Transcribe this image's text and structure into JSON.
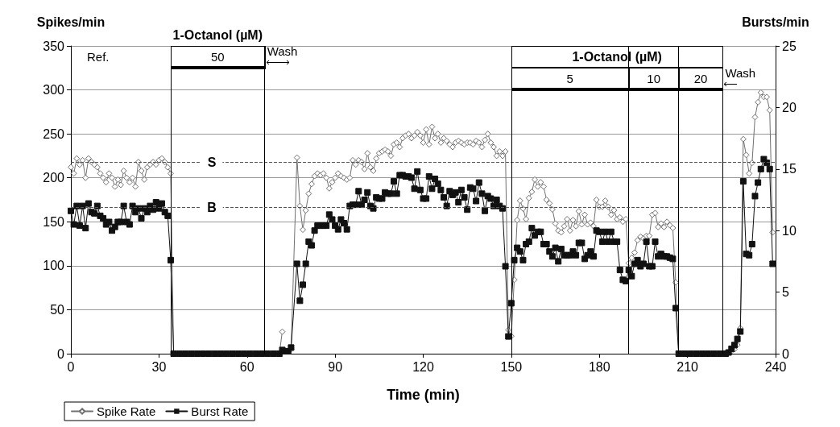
{
  "chart_data": {
    "type": "line",
    "xlabel": "Time (min)",
    "ylabel": "Spikes/min",
    "y2label": "Bursts/min",
    "xlim": [
      0,
      240
    ],
    "xticks": [
      0,
      30,
      60,
      90,
      120,
      150,
      180,
      210,
      240
    ],
    "ylim": [
      0,
      350
    ],
    "yticks": [
      0,
      50,
      100,
      150,
      200,
      250,
      300,
      350
    ],
    "y2lim": [
      0,
      25
    ],
    "y2ticks": [
      0,
      5,
      10,
      15,
      20,
      25
    ],
    "grid": "y",
    "legend": "bottom left",
    "x": [
      0,
      1,
      2,
      3,
      4,
      5,
      6,
      7,
      8,
      9,
      10,
      11,
      12,
      13,
      14,
      15,
      16,
      17,
      18,
      19,
      20,
      21,
      22,
      23,
      24,
      25,
      26,
      27,
      28,
      29,
      30,
      31,
      32,
      33,
      34,
      35,
      37,
      39,
      41,
      43,
      45,
      47,
      49,
      51,
      53,
      55,
      57,
      59,
      61,
      63,
      65,
      67,
      69,
      71,
      72,
      73,
      74,
      75,
      77,
      78,
      79,
      80,
      81,
      82,
      83,
      84,
      85,
      86,
      87,
      88,
      89,
      90,
      91,
      92,
      93,
      94,
      95,
      96,
      97,
      98,
      99,
      100,
      101,
      102,
      103,
      104,
      105,
      106,
      107,
      108,
      109,
      110,
      111,
      112,
      113,
      114,
      115,
      116,
      117,
      118,
      119,
      120,
      121,
      122,
      123,
      124,
      125,
      126,
      127,
      128,
      129,
      130,
      131,
      132,
      133,
      134,
      135,
      136,
      137,
      138,
      139,
      140,
      141,
      142,
      143,
      144,
      145,
      146,
      147,
      148,
      149,
      150,
      151,
      152,
      153,
      154,
      155,
      156,
      157,
      158,
      159,
      160,
      161,
      162,
      163,
      164,
      165,
      166,
      167,
      168,
      169,
      170,
      171,
      172,
      173,
      174,
      175,
      176,
      177,
      178,
      179,
      180,
      181,
      182,
      183,
      184,
      185,
      186,
      187,
      188,
      189,
      190,
      191,
      192,
      193,
      194,
      195,
      196,
      197,
      198,
      199,
      200,
      201,
      202,
      203,
      204,
      205,
      206,
      207,
      209,
      211,
      213,
      215,
      217,
      219,
      221,
      223,
      224,
      225,
      226,
      227,
      228,
      229,
      230,
      231,
      232,
      233,
      234,
      235,
      236,
      237,
      238,
      239
    ],
    "series": [
      {
        "name": "Spike Rate",
        "color": "#707070",
        "marker": "diamond",
        "values": [
          212,
          205,
          222,
          215,
          220,
          200,
          222,
          218,
          215,
          212,
          205,
          200,
          195,
          205,
          200,
          190,
          198,
          192,
          208,
          200,
          195,
          200,
          190,
          218,
          208,
          198,
          212,
          215,
          218,
          215,
          220,
          222,
          218,
          212,
          205,
          0,
          0,
          0,
          0,
          0,
          0,
          0,
          0,
          0,
          0,
          0,
          0,
          0,
          0,
          0,
          0,
          0,
          0,
          0,
          25,
          null,
          3,
          5,
          223,
          168,
          141,
          163,
          182,
          193,
          202,
          205,
          203,
          205,
          200,
          188,
          195,
          200,
          205,
          202,
          200,
          198,
          200,
          220,
          215,
          220,
          218,
          210,
          228,
          212,
          208,
          222,
          228,
          230,
          232,
          230,
          225,
          238,
          240,
          235,
          245,
          248,
          250,
          245,
          248,
          252,
          248,
          240,
          255,
          238,
          258,
          245,
          250,
          240,
          245,
          242,
          238,
          235,
          240,
          242,
          240,
          238,
          240,
          240,
          238,
          242,
          240,
          235,
          243,
          250,
          240,
          235,
          225,
          230,
          225,
          230,
          27,
          20,
          84,
          152,
          174,
          165,
          153,
          177,
          184,
          198,
          190,
          195,
          190,
          175,
          171,
          164,
          148,
          140,
          138,
          145,
          153,
          140,
          152,
          145,
          162,
          147,
          158,
          147,
          149,
          145,
          175,
          167,
          167,
          174,
          167,
          158,
          163,
          153,
          155,
          150,
          153,
          103,
          109,
          115,
          129,
          133,
          131,
          134,
          134,
          158,
          160,
          144,
          148,
          144,
          150,
          146,
          143,
          81,
          0,
          0,
          0,
          0,
          0,
          0,
          0,
          0,
          0,
          1,
          3,
          5,
          10,
          29,
          244,
          226,
          205,
          217,
          269,
          286,
          297,
          292,
          292,
          277,
          138
        ]
      },
      {
        "name": "Burst Rate",
        "color": "#111111",
        "marker": "square",
        "axis": "y2",
        "values": [
          11.6,
          10.5,
          12.0,
          10.4,
          12.0,
          10.2,
          12.2,
          11.5,
          11.4,
          12.0,
          11.2,
          11.0,
          10.5,
          10.7,
          10.0,
          10.3,
          10.7,
          10.7,
          12.0,
          10.7,
          10.5,
          12.0,
          11.5,
          11.8,
          11.0,
          11.8,
          11.5,
          12.0,
          11.7,
          12.3,
          11.8,
          12.2,
          11.5,
          11.2,
          7.6,
          0,
          0,
          0,
          0,
          0,
          0,
          0,
          0,
          0,
          0,
          0,
          0,
          0,
          0,
          0,
          0,
          0,
          0,
          0,
          0.3,
          0.2,
          0.2,
          0.5,
          7.3,
          4.3,
          5.6,
          7.3,
          9.1,
          8.8,
          10.0,
          10.4,
          10.4,
          10.4,
          10.4,
          11.3,
          10.9,
          10.4,
          10.1,
          10.9,
          10.6,
          10.1,
          12.0,
          12.1,
          12.1,
          13.2,
          12.1,
          12.5,
          13.1,
          12.0,
          11.8,
          12.7,
          12.6,
          12.6,
          13.1,
          13.0,
          13.0,
          14.0,
          13.0,
          14.5,
          14.5,
          14.4,
          14.4,
          14.3,
          13.4,
          14.8,
          13.3,
          12.6,
          12.6,
          14.4,
          13.4,
          14.2,
          13.8,
          13.3,
          12.7,
          12.0,
          13.2,
          12.9,
          13.1,
          12.3,
          13.3,
          12.7,
          11.7,
          13.5,
          13.4,
          12.4,
          13.9,
          13.0,
          11.6,
          12.8,
          12.6,
          12.0,
          12.5,
          12.0,
          11.8,
          7.1,
          1.4,
          4.1,
          7.6,
          8.6,
          8.3,
          7.6,
          8.9,
          9.1,
          10.2,
          9.6,
          9.9,
          9.9,
          8.9,
          8.9,
          8.3,
          7.9,
          8.6,
          7.5,
          8.5,
          8.0,
          8.0,
          8.0,
          8.3,
          8.0,
          9.0,
          9.0,
          7.7,
          8.0,
          8.3,
          7.9,
          10.0,
          9.9,
          9.1,
          9.9,
          9.1,
          9.9,
          9.1,
          9.1,
          6.8,
          6.0,
          5.9,
          6.8,
          6.3,
          7.3,
          7.6,
          7.1,
          7.3,
          9.1,
          7.1,
          7.1,
          9.1,
          7.9,
          8.1,
          7.9,
          7.9,
          7.8,
          7.7,
          3.7,
          0,
          0,
          0,
          0,
          0,
          0,
          0,
          0,
          0,
          0.1,
          0.4,
          0.7,
          1.2,
          1.8,
          14.0,
          8.1,
          8.0,
          8.9,
          12.8,
          13.9,
          15.0,
          15.8,
          15.5,
          15.0,
          7.3
        ]
      }
    ],
    "ref_lines": [
      {
        "axis": "y",
        "value": 218,
        "label": "S",
        "line_style": "dashed",
        "color": "#555555"
      },
      {
        "axis": "y2",
        "value": 11.9,
        "label": "B",
        "line_style": "dashed",
        "color": "#555555"
      },
      {
        "axis": "x",
        "value": 34,
        "line_style": "solid",
        "color": "#000000"
      },
      {
        "axis": "x",
        "value": 66,
        "line_style": "solid",
        "color": "#000000"
      },
      {
        "axis": "x",
        "value": 150,
        "line_style": "solid",
        "color": "#000000"
      },
      {
        "axis": "x",
        "value": 190,
        "line_style": "solid",
        "color": "#000000"
      },
      {
        "axis": "x",
        "value": 207,
        "line_style": "solid",
        "color": "#000000"
      },
      {
        "axis": "x",
        "value": 222,
        "line_style": "solid",
        "color": "#000000"
      }
    ],
    "annotations": [
      "1-Octanol (µM)",
      "50",
      "Wash",
      "Ref.",
      "1-Octanol (µM)",
      "5",
      "10",
      "20",
      "Wash"
    ]
  }
}
